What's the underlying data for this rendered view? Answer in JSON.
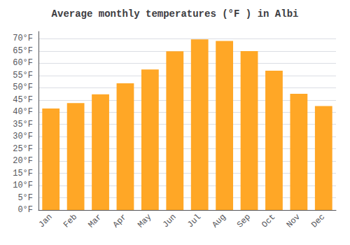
{
  "chart_data": {
    "type": "bar",
    "title": "Average monthly temperatures (°F ) in Albi",
    "categories": [
      "Jan",
      "Feb",
      "Mar",
      "Apr",
      "May",
      "Jun",
      "Jul",
      "Aug",
      "Sep",
      "Oct",
      "Nov",
      "Dec"
    ],
    "values": [
      41.5,
      43.7,
      47.3,
      51.8,
      57.5,
      64.9,
      69.8,
      69.1,
      65.0,
      57.0,
      47.5,
      42.5
    ],
    "color": "#FFA726",
    "ylim": [
      0,
      73
    ],
    "yticks": [
      {
        "value": 0,
        "label": "0°F"
      },
      {
        "value": 5,
        "label": "5°F"
      },
      {
        "value": 10,
        "label": "10°F"
      },
      {
        "value": 15,
        "label": "15°F"
      },
      {
        "value": 20,
        "label": "20°F"
      },
      {
        "value": 25,
        "label": "25°F"
      },
      {
        "value": 30,
        "label": "30°F"
      },
      {
        "value": 35,
        "label": "35°F"
      },
      {
        "value": 40,
        "label": "40°F"
      },
      {
        "value": 45,
        "label": "45°F"
      },
      {
        "value": 50,
        "label": "50°F"
      },
      {
        "value": 55,
        "label": "55°F"
      },
      {
        "value": 60,
        "label": "60°F"
      },
      {
        "value": 65,
        "label": "65°F"
      },
      {
        "value": 70,
        "label": "70°F"
      }
    ],
    "grid": true
  }
}
